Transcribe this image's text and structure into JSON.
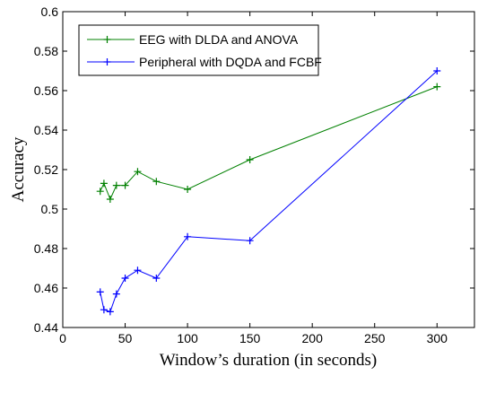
{
  "chart_data": {
    "type": "line",
    "title": "",
    "xlabel": "Window’s duration (in seconds)",
    "ylabel": "Accuracy",
    "xlim": [
      0,
      330
    ],
    "ylim": [
      0.44,
      0.6
    ],
    "xticks": [
      0,
      50,
      100,
      150,
      200,
      250,
      300
    ],
    "yticks": [
      0.44,
      0.46,
      0.48,
      0.5,
      0.52,
      0.54,
      0.56,
      0.58,
      0.6
    ],
    "xtick_labels": [
      "0",
      "50",
      "100",
      "150",
      "200",
      "250",
      "300"
    ],
    "ytick_labels": [
      "0.44",
      "0.46",
      "0.48",
      "0.5",
      "0.52",
      "0.54",
      "0.56",
      "0.58",
      "0.6"
    ],
    "grid": false,
    "legend_position": "top-left",
    "series": [
      {
        "name": "EEG with DLDA and ANOVA",
        "color": "#008000",
        "marker": "plus",
        "x": [
          30,
          33,
          38,
          43,
          50,
          60,
          75,
          100,
          150,
          300
        ],
        "y": [
          0.509,
          0.513,
          0.505,
          0.512,
          0.512,
          0.519,
          0.514,
          0.51,
          0.525,
          0.562
        ]
      },
      {
        "name": "Peripheral with DQDA and FCBF",
        "color": "#0000ff",
        "marker": "plus",
        "x": [
          30,
          33,
          38,
          43,
          50,
          60,
          75,
          100,
          150,
          300
        ],
        "y": [
          0.458,
          0.449,
          0.448,
          0.457,
          0.465,
          0.469,
          0.465,
          0.486,
          0.484,
          0.57
        ]
      }
    ]
  }
}
